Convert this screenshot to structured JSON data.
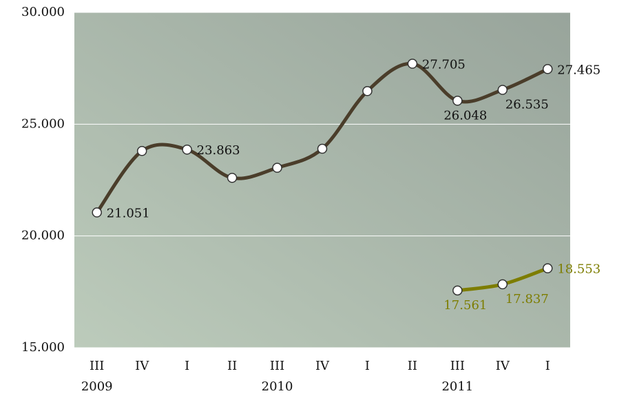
{
  "chart_data": {
    "type": "line",
    "categories": [
      "III",
      "IV",
      "I",
      "II",
      "III",
      "IV",
      "I",
      "II",
      "III",
      "IV",
      "I"
    ],
    "year_labels": [
      "2009",
      null,
      null,
      null,
      "2010",
      null,
      null,
      null,
      "2011",
      null,
      null
    ],
    "series": [
      {
        "name": null,
        "color": "#4a3d2a",
        "values": [
          21051,
          23800,
          23863,
          22600,
          23050,
          23900,
          26480,
          27705,
          26048,
          26535,
          27465
        ],
        "value_labels": [
          "21.051",
          null,
          "23.863",
          null,
          null,
          null,
          null,
          "27.705",
          "26.048",
          "26.535",
          "27.465"
        ]
      },
      {
        "name": null,
        "color": "#7d7d00",
        "values": [
          null,
          null,
          null,
          null,
          null,
          null,
          null,
          null,
          17561,
          17837,
          18553
        ],
        "value_labels": [
          null,
          null,
          null,
          null,
          null,
          null,
          null,
          null,
          "17.561",
          "17.837",
          "18.553"
        ]
      }
    ],
    "ylim": [
      15000,
      30000
    ],
    "yticks": [
      {
        "value": 15000,
        "label": "15.000"
      },
      {
        "value": 20000,
        "label": "20.000"
      },
      {
        "value": 25000,
        "label": "25.000"
      },
      {
        "value": 30000,
        "label": "30.000"
      }
    ],
    "grid": true
  }
}
